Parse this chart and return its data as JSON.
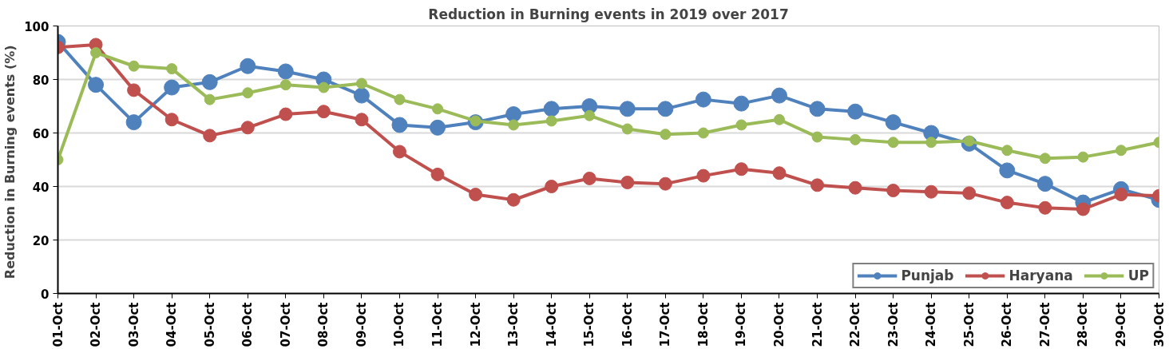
{
  "chart_data": {
    "type": "line",
    "title": "Reduction in Burning events in 2019 over 2017",
    "ylabel": "Reduction in Burning events  (%)",
    "categories": [
      "01-Oct",
      "02-Oct",
      "03-Oct",
      "04-Oct",
      "05-Oct",
      "06-Oct",
      "07-Oct",
      "08-Oct",
      "09-Oct",
      "10-Oct",
      "11-Oct",
      "12-Oct",
      "13-Oct",
      "14-Oct",
      "15-Oct",
      "16-Oct",
      "17-Oct",
      "18-Oct",
      "19-Oct",
      "20-Oct",
      "21-Oct",
      "22-Oct",
      "23-Oct",
      "24-Oct",
      "25-Oct",
      "26-Oct",
      "27-Oct",
      "28-Oct",
      "29-Oct",
      "30-Oct"
    ],
    "series": [
      {
        "name": "Punjab",
        "color": "#4f81bd",
        "values": [
          94,
          78,
          64,
          77,
          79,
          85,
          83,
          80,
          74,
          63,
          62,
          64,
          67,
          69,
          70,
          69,
          69,
          72.5,
          71,
          74,
          69,
          68,
          64,
          60,
          56,
          46,
          41,
          34,
          39,
          35
        ]
      },
      {
        "name": "Haryana",
        "color": "#c0504d",
        "values": [
          92,
          93,
          76,
          65,
          59,
          62,
          67,
          68,
          65,
          53,
          44.5,
          37,
          35,
          40,
          43,
          41.5,
          41,
          44,
          46.5,
          45,
          40.5,
          39.5,
          38.5,
          38,
          37.5,
          34,
          32,
          31.5,
          37,
          36.5
        ]
      },
      {
        "name": "UP",
        "color": "#9bbb59",
        "values": [
          50,
          90,
          85,
          84,
          72.5,
          75,
          78,
          77,
          78.5,
          72.5,
          69,
          64.5,
          63,
          64.5,
          66.5,
          61.5,
          59.5,
          60,
          63,
          65,
          58.5,
          57.5,
          56.5,
          56.5,
          57,
          53.5,
          50.5,
          51,
          53.5,
          56.5
        ]
      }
    ],
    "ylim": [
      0,
      100
    ],
    "yticks": [
      0,
      20,
      40,
      60,
      80,
      100
    ],
    "grid": "y",
    "legend": "bottom right",
    "marker": "circle",
    "line_style": "solid"
  }
}
